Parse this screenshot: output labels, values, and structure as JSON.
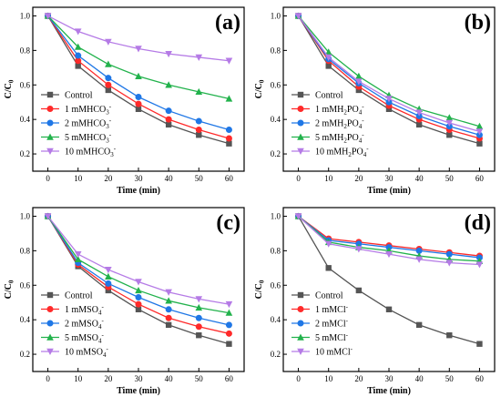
{
  "chart_data": [
    {
      "type": "line",
      "panel_label": "(a)",
      "xlabel": "Time (min)",
      "ylabel": "C/C",
      "ylabel_sub": "0",
      "x": [
        0,
        10,
        20,
        30,
        40,
        50,
        60
      ],
      "xlim": [
        -5,
        65
      ],
      "ylim": [
        0.1,
        1.05
      ],
      "xticks": [
        0,
        10,
        20,
        30,
        40,
        50,
        60
      ],
      "yticks": [
        0.2,
        0.4,
        0.6,
        0.8,
        1.0
      ],
      "legend_position": "bottom-left",
      "series": [
        {
          "name": "Control",
          "sup": "",
          "sub": "",
          "color": "#555555",
          "marker": "square",
          "values": [
            1.0,
            0.71,
            0.57,
            0.46,
            0.37,
            0.31,
            0.26
          ]
        },
        {
          "name": "1 mMHCO",
          "sub": "3",
          "sup": "-",
          "color": "#ff2a2a",
          "marker": "circle",
          "values": [
            1.0,
            0.74,
            0.6,
            0.49,
            0.4,
            0.34,
            0.29
          ]
        },
        {
          "name": "2 mMHCO",
          "sub": "3",
          "sup": "-",
          "color": "#1f77e6",
          "marker": "circle",
          "values": [
            1.0,
            0.77,
            0.64,
            0.53,
            0.45,
            0.39,
            0.34
          ]
        },
        {
          "name": "5 mMHCO",
          "sub": "3",
          "sup": "-",
          "color": "#22b24c",
          "marker": "triangle",
          "values": [
            1.0,
            0.82,
            0.72,
            0.65,
            0.6,
            0.56,
            0.52
          ]
        },
        {
          "name": "10 mMHCO",
          "sub": "3",
          "sup": "-",
          "color": "#b57be6",
          "marker": "triangle-down",
          "values": [
            1.0,
            0.91,
            0.85,
            0.81,
            0.78,
            0.76,
            0.74
          ]
        }
      ]
    },
    {
      "type": "line",
      "panel_label": "(b)",
      "xlabel": "Time (min)",
      "ylabel": "C/C",
      "ylabel_sub": "0",
      "x": [
        0,
        10,
        20,
        30,
        40,
        50,
        60
      ],
      "xlim": [
        -5,
        65
      ],
      "ylim": [
        0.1,
        1.05
      ],
      "xticks": [
        0,
        10,
        20,
        30,
        40,
        50,
        60
      ],
      "yticks": [
        0.2,
        0.4,
        0.6,
        0.8,
        1.0
      ],
      "legend_position": "bottom-left",
      "series": [
        {
          "name": "Control",
          "sup": "",
          "sub": "",
          "color": "#555555",
          "marker": "square",
          "values": [
            1.0,
            0.71,
            0.57,
            0.46,
            0.37,
            0.31,
            0.26
          ]
        },
        {
          "name": "1 mMH",
          "sub": "2",
          "tail": "PO",
          "sub2": "4",
          "sup": "-",
          "color": "#ff2a2a",
          "marker": "circle",
          "values": [
            1.0,
            0.74,
            0.59,
            0.48,
            0.4,
            0.34,
            0.29
          ]
        },
        {
          "name": "2 mMH",
          "sub": "2",
          "tail": "PO",
          "sub2": "4",
          "sup": "-",
          "color": "#1f77e6",
          "marker": "circle",
          "values": [
            1.0,
            0.75,
            0.61,
            0.5,
            0.42,
            0.36,
            0.31
          ]
        },
        {
          "name": "5 mMH",
          "sub": "2",
          "tail": "PO",
          "sub2": "4",
          "sup": "-",
          "color": "#22b24c",
          "marker": "triangle",
          "values": [
            1.0,
            0.79,
            0.65,
            0.54,
            0.46,
            0.41,
            0.36
          ]
        },
        {
          "name": "10 mMH",
          "sub": "2",
          "tail": "PO",
          "sub2": "4",
          "sup": "-",
          "color": "#b57be6",
          "marker": "triangle-down",
          "values": [
            1.0,
            0.76,
            0.62,
            0.52,
            0.44,
            0.38,
            0.33
          ]
        }
      ]
    },
    {
      "type": "line",
      "panel_label": "(c)",
      "xlabel": "Time (min)",
      "ylabel": "C/C",
      "ylabel_sub": "0",
      "x": [
        0,
        10,
        20,
        30,
        40,
        50,
        60
      ],
      "xlim": [
        -5,
        65
      ],
      "ylim": [
        0.1,
        1.05
      ],
      "xticks": [
        0,
        10,
        20,
        30,
        40,
        50,
        60
      ],
      "yticks": [
        0.2,
        0.4,
        0.6,
        0.8,
        1.0
      ],
      "legend_position": "bottom-left",
      "series": [
        {
          "name": "Control",
          "sup": "",
          "sub": "",
          "color": "#555555",
          "marker": "square",
          "values": [
            1.0,
            0.71,
            0.57,
            0.46,
            0.37,
            0.31,
            0.26
          ]
        },
        {
          "name": "1 mMSO",
          "sub": "4",
          "sup": "-",
          "color": "#ff2a2a",
          "marker": "circle",
          "values": [
            1.0,
            0.72,
            0.59,
            0.49,
            0.41,
            0.36,
            0.32
          ]
        },
        {
          "name": "2 mMSO",
          "sub": "4",
          "sup": "-",
          "color": "#1f77e6",
          "marker": "circle",
          "values": [
            1.0,
            0.73,
            0.61,
            0.53,
            0.46,
            0.41,
            0.37
          ]
        },
        {
          "name": "5 mMSO",
          "sub": "4",
          "sup": "-",
          "color": "#22b24c",
          "marker": "triangle",
          "values": [
            1.0,
            0.75,
            0.65,
            0.57,
            0.51,
            0.47,
            0.44
          ]
        },
        {
          "name": "10 mMSO",
          "sub": "4",
          "sup": "-",
          "color": "#b57be6",
          "marker": "triangle-down",
          "values": [
            1.0,
            0.78,
            0.69,
            0.62,
            0.56,
            0.52,
            0.49
          ]
        }
      ]
    },
    {
      "type": "line",
      "panel_label": "(d)",
      "xlabel": "Time (min)",
      "ylabel": "C/C",
      "ylabel_sub": "0",
      "x": [
        0,
        10,
        20,
        30,
        40,
        50,
        60
      ],
      "xlim": [
        -5,
        65
      ],
      "ylim": [
        0.1,
        1.05
      ],
      "xticks": [
        0,
        10,
        20,
        30,
        40,
        50,
        60
      ],
      "yticks": [
        0.2,
        0.4,
        0.6,
        0.8,
        1.0
      ],
      "legend_position": "bottom-left",
      "series": [
        {
          "name": "Control",
          "sup": "",
          "sub": "",
          "color": "#555555",
          "marker": "square",
          "values": [
            1.0,
            0.7,
            0.57,
            0.46,
            0.37,
            0.31,
            0.26
          ]
        },
        {
          "name": "1 mMCl",
          "sub": "",
          "sup": "-",
          "color": "#ff2a2a",
          "marker": "circle",
          "values": [
            1.0,
            0.87,
            0.85,
            0.83,
            0.81,
            0.79,
            0.77
          ]
        },
        {
          "name": "2 mMCl",
          "sub": "",
          "sup": "-",
          "color": "#1f77e6",
          "marker": "circle",
          "values": [
            1.0,
            0.86,
            0.84,
            0.82,
            0.8,
            0.78,
            0.76
          ]
        },
        {
          "name": "5 mMCl",
          "sub": "",
          "sup": "-",
          "color": "#22b24c",
          "marker": "triangle",
          "values": [
            1.0,
            0.85,
            0.82,
            0.8,
            0.77,
            0.75,
            0.74
          ]
        },
        {
          "name": "10 mMCl",
          "sub": "",
          "sup": "-",
          "color": "#b57be6",
          "marker": "triangle-down",
          "values": [
            1.0,
            0.84,
            0.81,
            0.78,
            0.75,
            0.73,
            0.72
          ]
        }
      ]
    }
  ]
}
